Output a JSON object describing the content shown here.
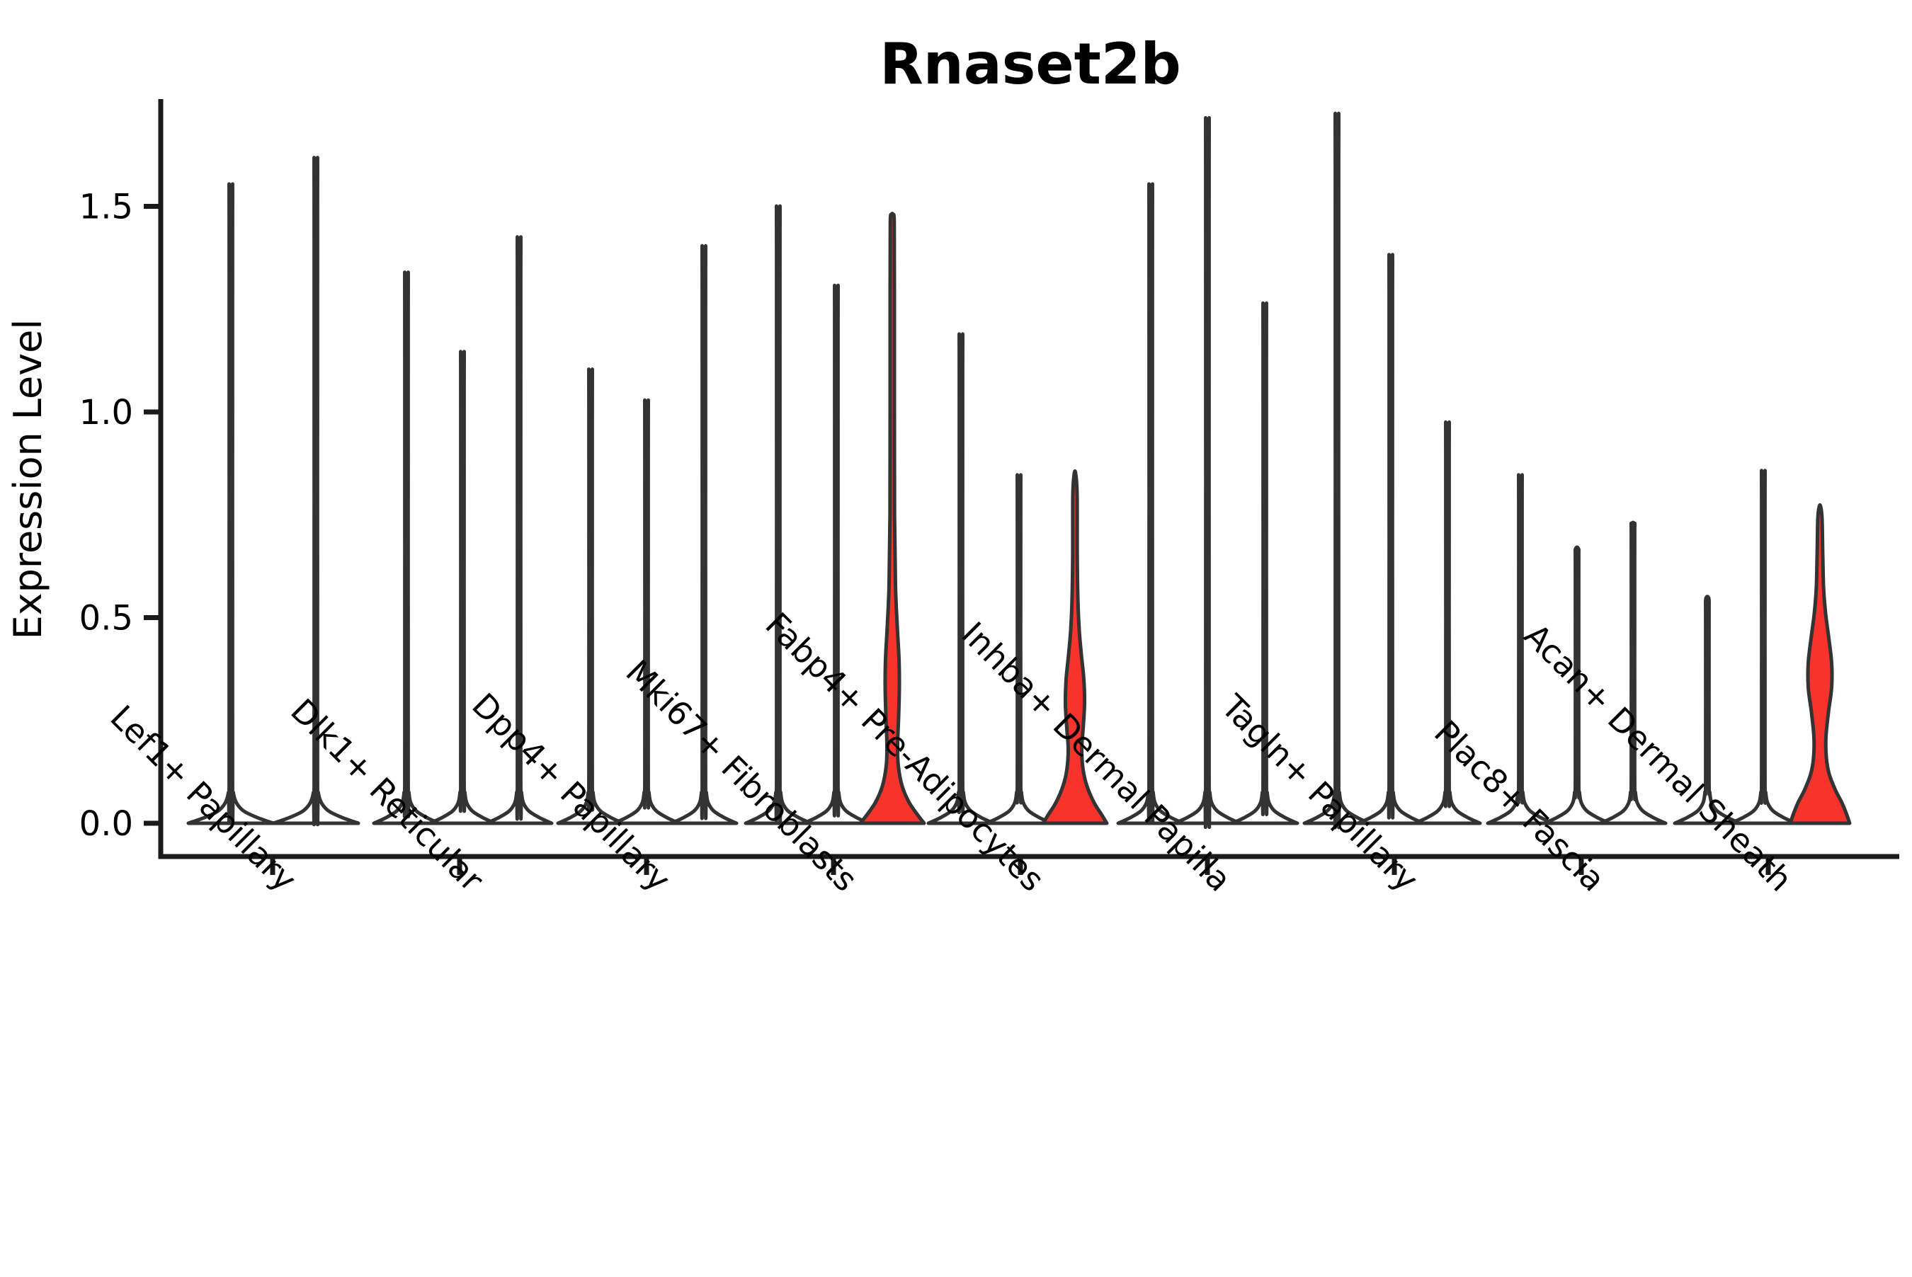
{
  "title": "Rnaset2b",
  "colors": {
    "background": "#ffffff",
    "axis": "#1a1a1a",
    "violin_stroke": "#333333",
    "violin_fill": "#ffffff",
    "highlight_fill": "#f8332b",
    "text": "#000000"
  },
  "chart_data": {
    "type": "violin",
    "title": "Rnaset2b",
    "xlabel": "",
    "ylabel": "Expression Level",
    "legend": "none",
    "grid": "off",
    "yticks": [
      {
        "label": "0.0",
        "value": 0.0
      },
      {
        "label": "0.5",
        "value": 0.5
      },
      {
        "label": "1.0",
        "value": 1.0
      },
      {
        "label": "1.5",
        "value": 1.5
      }
    ],
    "ylim": [
      -0.08,
      1.76
    ],
    "categories": [
      "Lef1+ Papillary",
      "Dlk1+ Reticular",
      "Dpp4+ Papillary",
      "Mki67+ Fibroblasts",
      "Fabp4+ Pre-Adipocytes",
      "Inhba+ Dermal Papilla",
      "Tagln+ Papillary",
      "Plac8+ Fascia",
      "Acan+ Dermal Sheath"
    ],
    "groups": [
      {
        "label": "Lef1+ Papillary",
        "violins": [
          {
            "dx": -59,
            "max": 1.5,
            "fw": 60,
            "highlighted": false
          },
          {
            "dx": 61,
            "max": 1.56,
            "fw": 60,
            "highlighted": false
          }
        ]
      },
      {
        "label": "Dlk1+ Reticular",
        "violins": [
          {
            "dx": -75,
            "max": 1.3,
            "fw": 46,
            "highlighted": false
          },
          {
            "dx": 4,
            "max": 1.12,
            "fw": 46,
            "highlighted": false
          },
          {
            "dx": 84,
            "max": 1.38,
            "fw": 46,
            "highlighted": false
          }
        ]
      },
      {
        "label": "Dpp4+ Papillary",
        "violins": [
          {
            "dx": -79,
            "max": 1.08,
            "fw": 46,
            "highlighted": false
          },
          {
            "dx": 0,
            "max": 1.01,
            "fw": 46,
            "highlighted": false
          },
          {
            "dx": 81,
            "max": 1.36,
            "fw": 46,
            "highlighted": false
          }
        ]
      },
      {
        "label": "Mki67+ Fibroblasts",
        "violins": [
          {
            "dx": -78,
            "max": 1.45,
            "fw": 46,
            "highlighted": false
          },
          {
            "dx": 4,
            "max": 1.27,
            "fw": 46,
            "highlighted": false
          },
          {
            "dx": 83,
            "max": 1.48,
            "fw": 45,
            "highlighted": true,
            "profile": [
              [
                0,
                45
              ],
              [
                0.02,
                36
              ],
              [
                0.05,
                24
              ],
              [
                0.09,
                14
              ],
              [
                0.14,
                8.5
              ],
              [
                0.19,
                7.5
              ],
              [
                0.26,
                9
              ],
              [
                0.33,
                10
              ],
              [
                0.4,
                9.5
              ],
              [
                0.48,
                7
              ],
              [
                0.58,
                4.5
              ],
              [
                0.75,
                3.2
              ],
              [
                1.0,
                3
              ],
              [
                1.3,
                3
              ],
              [
                1.46,
                2.8
              ],
              [
                1.48,
                1
              ]
            ]
          }
        ]
      },
      {
        "label": "Fabp4+ Pre-Adipocytes",
        "violins": [
          {
            "dx": -84,
            "max": 1.16,
            "fw": 46,
            "highlighted": false
          },
          {
            "dx": -2,
            "max": 0.84,
            "fw": 46,
            "highlighted": false
          },
          {
            "dx": 77,
            "max": 0.85,
            "fw": 45,
            "highlighted": true,
            "profile": [
              [
                0,
                45
              ],
              [
                0.02,
                38
              ],
              [
                0.05,
                27
              ],
              [
                0.09,
                17
              ],
              [
                0.13,
                11.5
              ],
              [
                0.18,
                9.5
              ],
              [
                0.23,
                11.5
              ],
              [
                0.29,
                13.5
              ],
              [
                0.35,
                12.5
              ],
              [
                0.41,
                9
              ],
              [
                0.47,
                6
              ],
              [
                0.54,
                4.2
              ],
              [
                0.65,
                3.2
              ],
              [
                0.8,
                3
              ],
              [
                0.85,
                1
              ]
            ]
          }
        ]
      },
      {
        "label": "Inhba+ Dermal Papilla",
        "violins": [
          {
            "dx": -80,
            "max": 1.5,
            "fw": 46,
            "highlighted": false
          },
          {
            "dx": 0,
            "max": 1.65,
            "fw": 46,
            "highlighted": false
          },
          {
            "dx": 81,
            "max": 1.23,
            "fw": 46,
            "highlighted": false
          }
        ]
      },
      {
        "label": "Tagln+ Papillary",
        "violins": [
          {
            "dx": -81,
            "max": 1.66,
            "fw": 46,
            "highlighted": false
          },
          {
            "dx": -5,
            "max": 1.34,
            "fw": 46,
            "highlighted": false
          },
          {
            "dx": 75,
            "max": 0.96,
            "fw": 46,
            "highlighted": false
          }
        ]
      },
      {
        "label": "Plac8+ Fascia",
        "violins": [
          {
            "dx": -86,
            "max": 0.84,
            "fw": 46,
            "highlighted": false
          },
          {
            "dx": -6,
            "max": 0.67,
            "fw": 46,
            "highlighted": false
          },
          {
            "dx": 73,
            "max": 0.73,
            "fw": 46,
            "highlighted": false
          }
        ]
      },
      {
        "label": "Acan+ Dermal Sheath",
        "violins": [
          {
            "dx": -86,
            "max": 0.55,
            "fw": 46,
            "highlighted": false
          },
          {
            "dx": -7,
            "max": 0.85,
            "fw": 46,
            "highlighted": false
          },
          {
            "dx": 73,
            "max": 0.77,
            "fw": 42,
            "highlighted": true,
            "profile": [
              [
                0,
                42
              ],
              [
                0.02,
                38
              ],
              [
                0.05,
                31
              ],
              [
                0.08,
                22
              ],
              [
                0.12,
                13
              ],
              [
                0.16,
                9
              ],
              [
                0.21,
                8.5
              ],
              [
                0.27,
                12
              ],
              [
                0.33,
                16.5
              ],
              [
                0.39,
                16.5
              ],
              [
                0.45,
                12.5
              ],
              [
                0.51,
                8
              ],
              [
                0.57,
                5.2
              ],
              [
                0.65,
                4
              ],
              [
                0.74,
                3
              ],
              [
                0.77,
                1
              ]
            ]
          }
        ]
      }
    ]
  }
}
